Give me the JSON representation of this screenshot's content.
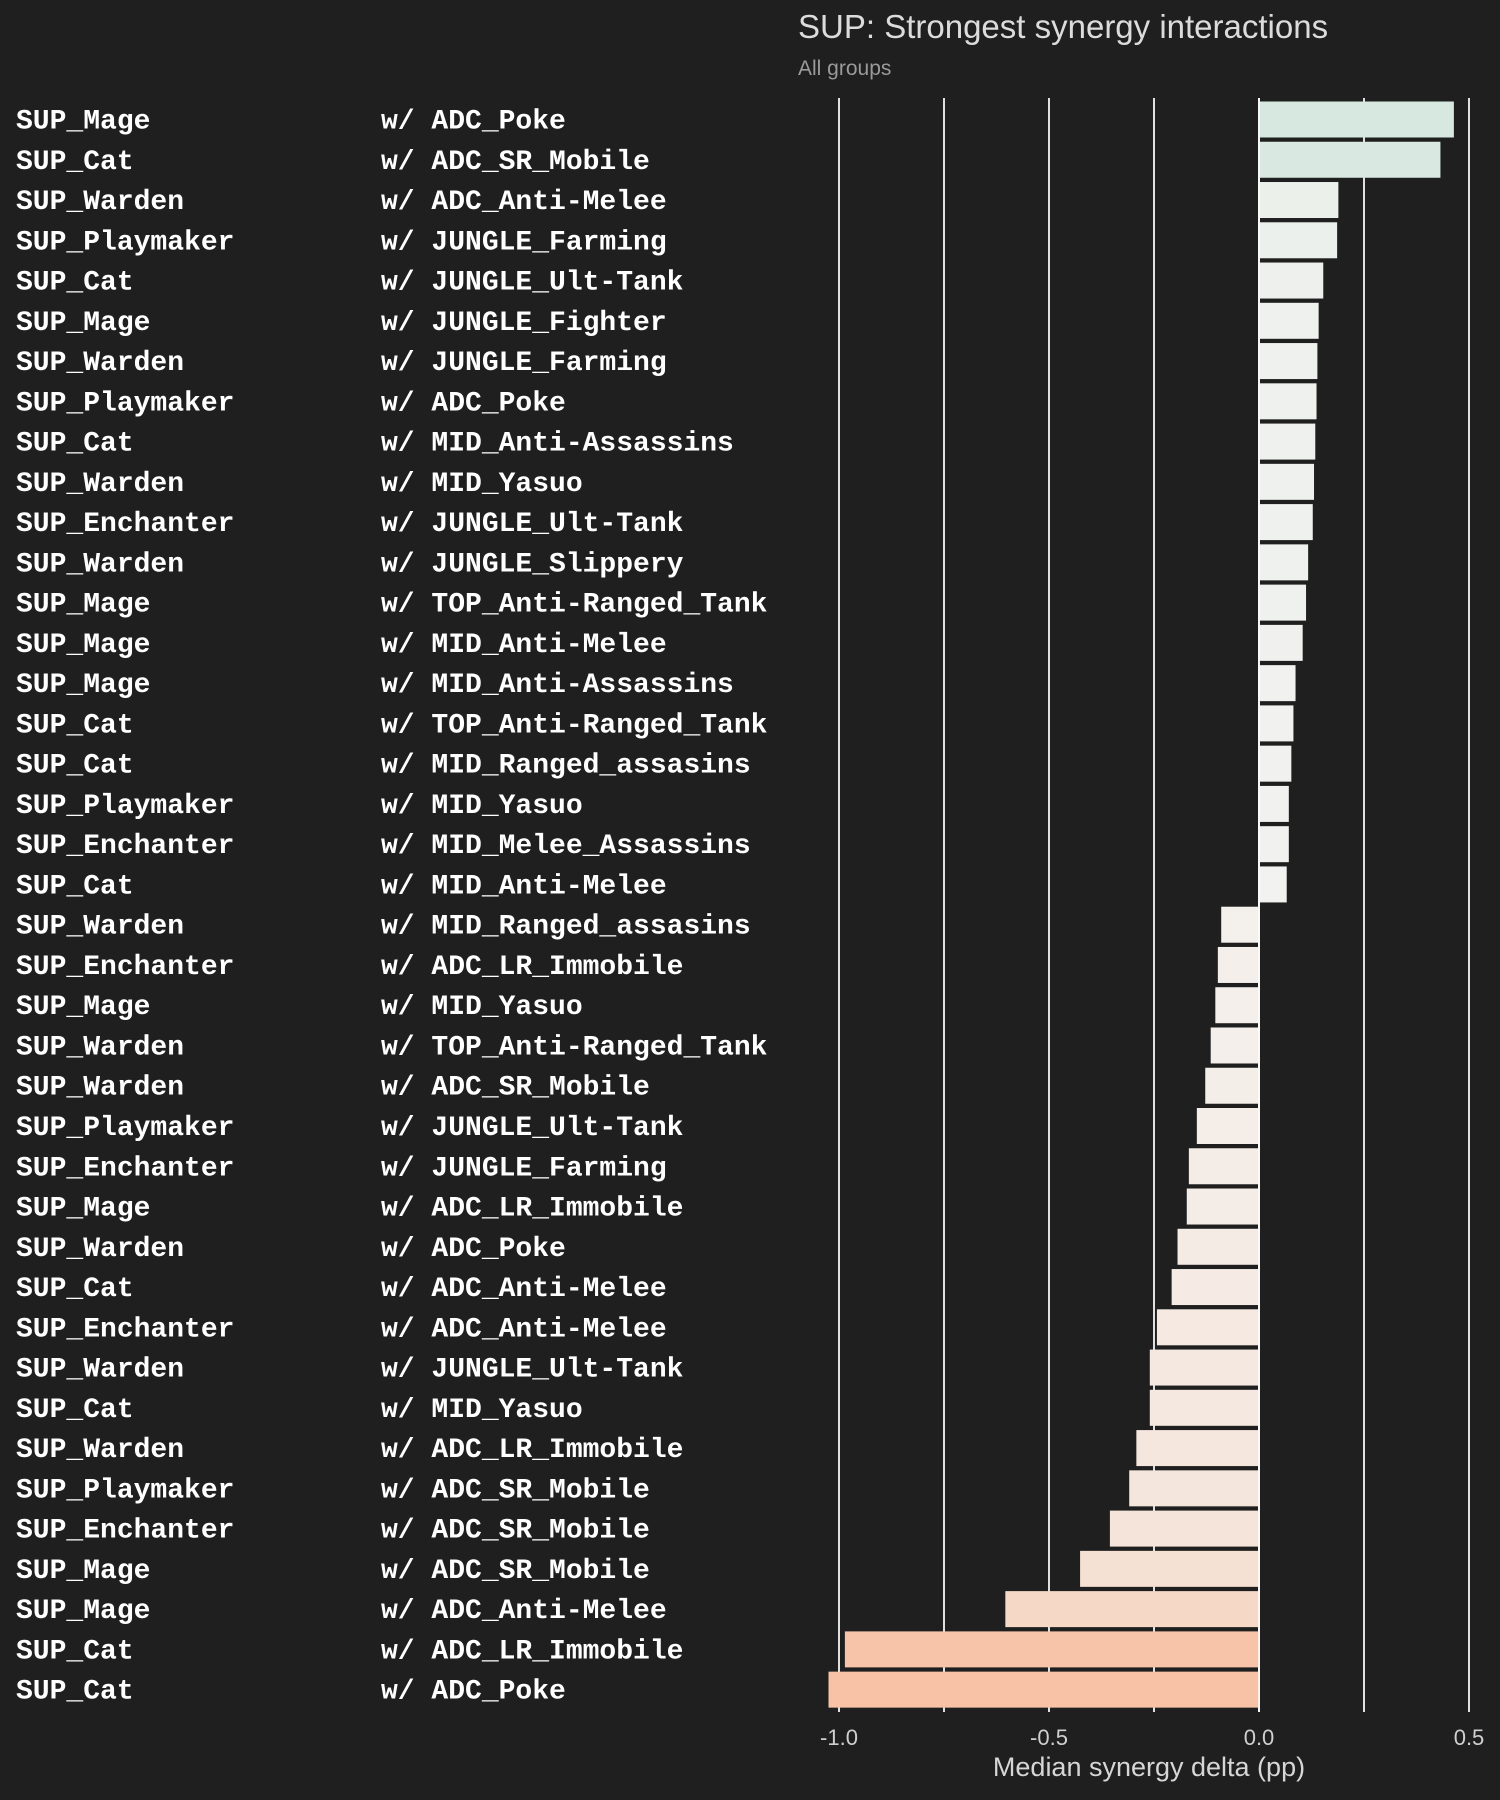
{
  "chart_data": {
    "type": "bar",
    "orientation": "horizontal",
    "title": "SUP: Strongest synergy interactions",
    "subtitle": "All groups",
    "xlabel": "Median synergy delta (pp)",
    "ylabel": "",
    "xlim": [
      -1.0,
      0.5
    ],
    "xticks": [
      "-1.0",
      "-0.5",
      "0.0",
      "0.5"
    ],
    "grid": true,
    "colors": {
      "positive": "#d6e8df",
      "neutral": "#f4f3f1",
      "negative": "#f7c2a6",
      "grid": "#e0e0e0",
      "background": "#1f1f1f"
    },
    "rows": [
      {
        "a": "SUP_Mage",
        "b": "w/ ADC_Poke",
        "value": 0.464
      },
      {
        "a": "SUP_Cat",
        "b": "w/ ADC_SR_Mobile",
        "value": 0.432
      },
      {
        "a": "SUP_Warden",
        "b": "w/ ADC_Anti-Melee",
        "value": 0.189
      },
      {
        "a": "SUP_Playmaker",
        "b": "w/ JUNGLE_Farming",
        "value": 0.186
      },
      {
        "a": "SUP_Cat",
        "b": "w/ JUNGLE_Ult-Tank",
        "value": 0.153
      },
      {
        "a": "SUP_Mage",
        "b": "w/ JUNGLE_Fighter",
        "value": 0.142
      },
      {
        "a": "SUP_Warden",
        "b": "w/ JUNGLE_Farming",
        "value": 0.139
      },
      {
        "a": "SUP_Playmaker",
        "b": "w/ ADC_Poke",
        "value": 0.137
      },
      {
        "a": "SUP_Cat",
        "b": "w/ MID_Anti-Assassins",
        "value": 0.134
      },
      {
        "a": "SUP_Warden",
        "b": "w/ MID_Yasuo",
        "value": 0.131
      },
      {
        "a": "SUP_Enchanter",
        "b": "w/ JUNGLE_Ult-Tank",
        "value": 0.128
      },
      {
        "a": "SUP_Warden",
        "b": "w/ JUNGLE_Slippery",
        "value": 0.117
      },
      {
        "a": "SUP_Mage",
        "b": "w/ TOP_Anti-Ranged_Tank",
        "value": 0.112
      },
      {
        "a": "SUP_Mage",
        "b": "w/ MID_Anti-Melee",
        "value": 0.104
      },
      {
        "a": "SUP_Mage",
        "b": "w/ MID_Anti-Assassins",
        "value": 0.087
      },
      {
        "a": "SUP_Cat",
        "b": "w/ TOP_Anti-Ranged_Tank",
        "value": 0.082
      },
      {
        "a": "SUP_Cat",
        "b": "w/ MID_Ranged_assasins",
        "value": 0.077
      },
      {
        "a": "SUP_Playmaker",
        "b": "w/ MID_Yasuo",
        "value": 0.071
      },
      {
        "a": "SUP_Enchanter",
        "b": "w/ MID_Melee_Assassins",
        "value": 0.071
      },
      {
        "a": "SUP_Cat",
        "b": "w/ MID_Anti-Melee",
        "value": 0.066
      },
      {
        "a": "SUP_Warden",
        "b": "w/ MID_Ranged_assasins",
        "value": -0.09
      },
      {
        "a": "SUP_Enchanter",
        "b": "w/ ADC_LR_Immobile",
        "value": -0.098
      },
      {
        "a": "SUP_Mage",
        "b": "w/ MID_Yasuo",
        "value": -0.104
      },
      {
        "a": "SUP_Warden",
        "b": "w/ TOP_Anti-Ranged_Tank",
        "value": -0.115
      },
      {
        "a": "SUP_Warden",
        "b": "w/ ADC_SR_Mobile",
        "value": -0.128
      },
      {
        "a": "SUP_Playmaker",
        "b": "w/ JUNGLE_Ult-Tank",
        "value": -0.148
      },
      {
        "a": "SUP_Enchanter",
        "b": "w/ JUNGLE_Farming",
        "value": -0.167
      },
      {
        "a": "SUP_Mage",
        "b": "w/ ADC_LR_Immobile",
        "value": -0.172
      },
      {
        "a": "SUP_Warden",
        "b": "w/ ADC_Poke",
        "value": -0.194
      },
      {
        "a": "SUP_Cat",
        "b": "w/ ADC_Anti-Melee",
        "value": -0.208
      },
      {
        "a": "SUP_Enchanter",
        "b": "w/ ADC_Anti-Melee",
        "value": -0.243
      },
      {
        "a": "SUP_Warden",
        "b": "w/ JUNGLE_Ult-Tank",
        "value": -0.26
      },
      {
        "a": "SUP_Cat",
        "b": "w/ MID_Yasuo",
        "value": -0.26
      },
      {
        "a": "SUP_Warden",
        "b": "w/ ADC_LR_Immobile",
        "value": -0.292
      },
      {
        "a": "SUP_Playmaker",
        "b": "w/ ADC_SR_Mobile",
        "value": -0.309
      },
      {
        "a": "SUP_Enchanter",
        "b": "w/ ADC_SR_Mobile",
        "value": -0.355
      },
      {
        "a": "SUP_Mage",
        "b": "w/ ADC_SR_Mobile",
        "value": -0.426
      },
      {
        "a": "SUP_Mage",
        "b": "w/ ADC_Anti-Melee",
        "value": -0.604
      },
      {
        "a": "SUP_Cat",
        "b": "w/ ADC_LR_Immobile",
        "value": -0.986
      },
      {
        "a": "SUP_Cat",
        "b": "w/ ADC_Poke",
        "value": -1.025
      }
    ]
  }
}
